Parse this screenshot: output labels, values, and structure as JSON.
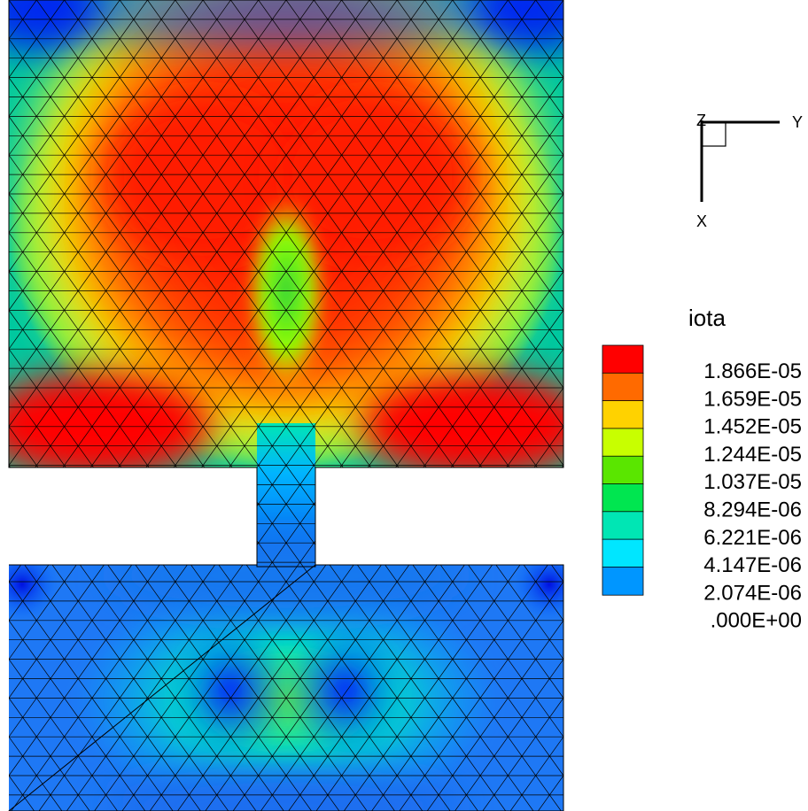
{
  "legend": {
    "title": "iota",
    "levels": [
      "1.866E-05",
      "1.659E-05",
      "1.452E-05",
      "1.244E-05",
      "1.037E-05",
      "8.294E-06",
      "6.221E-06",
      "4.147E-06",
      "2.074E-06",
      ".000E+00"
    ],
    "colors": [
      "#ff0000",
      "#ff6a00",
      "#ffd200",
      "#c8ff00",
      "#5ae600",
      "#00e650",
      "#00e6b4",
      "#00e6ff",
      "#0096ff",
      "#0000ff"
    ]
  },
  "axes": {
    "z_label": "Z",
    "y_label": "Y",
    "x_label": "X"
  },
  "colors": {
    "mesh_line": "#000000",
    "background": "#ffffff"
  }
}
